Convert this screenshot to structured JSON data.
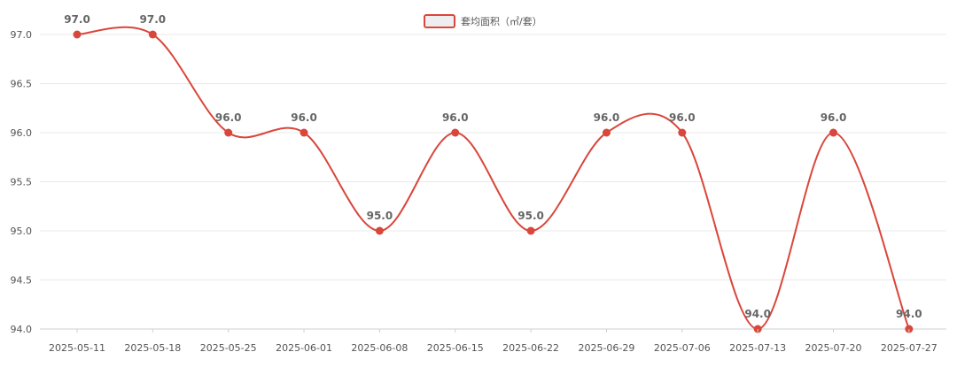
{
  "colors": {
    "series": "#d9463b",
    "legend_fill": "#eeeeee"
  },
  "chart_data": {
    "type": "line",
    "smooth": true,
    "categories": [
      "2025-05-11",
      "2025-05-18",
      "2025-05-25",
      "2025-06-01",
      "2025-06-08",
      "2025-06-15",
      "2025-06-22",
      "2025-06-29",
      "2025-07-06",
      "2025-07-13",
      "2025-07-20",
      "2025-07-27"
    ],
    "series": [
      {
        "name": "套均面积（㎡/套）",
        "values": [
          97.0,
          97.0,
          96.0,
          96.0,
          95.0,
          96.0,
          95.0,
          96.0,
          96.0,
          94.0,
          96.0,
          94.0
        ]
      }
    ],
    "data_labels": [
      "97.0",
      "97.0",
      "96.0",
      "96.0",
      "95.0",
      "96.0",
      "95.0",
      "96.0",
      "96.0",
      "94.0",
      "96.0",
      "94.0"
    ],
    "y_ticks": [
      "97.0",
      "96.5",
      "96.0",
      "95.5",
      "95.0",
      "94.5",
      "94.0"
    ],
    "ylim": [
      94.0,
      97.0
    ],
    "grid": true,
    "legend_position": "top-center",
    "title": "",
    "xlabel": "",
    "ylabel": ""
  }
}
